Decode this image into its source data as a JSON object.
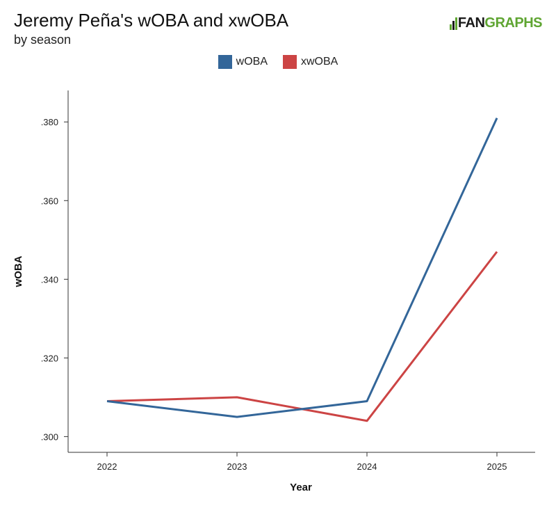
{
  "header": {
    "title": "Jeremy Peña's wOBA and xwOBA",
    "subtitle": "by season",
    "logo_fan": "FAN",
    "logo_graphs": "GRAPHS"
  },
  "colors": {
    "woba": "#336699",
    "xwoba": "#cc4444",
    "axis": "#333333"
  },
  "chart_data": {
    "type": "line",
    "title": "Jeremy Peña's wOBA and xwOBA",
    "subtitle": "by season",
    "xlabel": "Year",
    "ylabel": "wOBA",
    "x": [
      "2022",
      "2023",
      "2024",
      "2025"
    ],
    "ylim": [
      0.296,
      0.388
    ],
    "yticks": [
      0.3,
      0.32,
      0.34,
      0.36,
      0.38
    ],
    "ytick_labels": [
      ".300",
      ".320",
      ".340",
      ".360",
      ".380"
    ],
    "legend_position": "top-center",
    "grid": false,
    "series": [
      {
        "name": "wOBA",
        "color": "#336699",
        "values": [
          0.309,
          0.305,
          0.309,
          0.381
        ]
      },
      {
        "name": "xwOBA",
        "color": "#cc4444",
        "values": [
          0.309,
          0.31,
          0.304,
          0.347
        ]
      }
    ]
  }
}
